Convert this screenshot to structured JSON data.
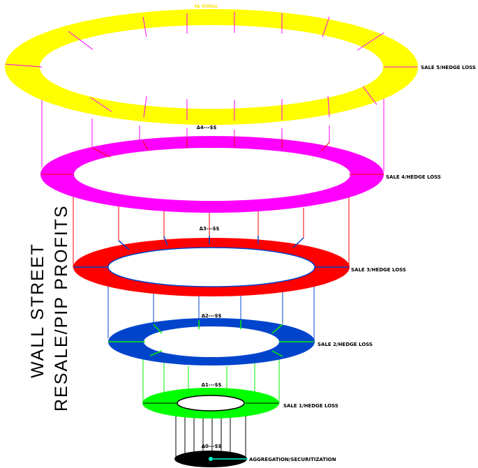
{
  "title_side_line1": "WALL STREET",
  "title_side_line2": "RESALE/PIP PROFITS",
  "top_label": "4$ Trillion",
  "colors": {
    "ring5": "#ffff00",
    "ring4": "#ff00ff",
    "ring3": "#ff0000",
    "ring2": "#0044cc",
    "ring1": "#00ff00",
    "ring0": "#000000",
    "top_label": "#ffe000"
  },
  "tiers": [
    {
      "delta": "Δ0---$$",
      "label": "AGGREGATION/SECURITIZATION"
    },
    {
      "delta": "Δ1---$$",
      "label": "SALE 1/HEDGE LOSS"
    },
    {
      "delta": "Δ2---$$",
      "label": "SALE 2/HEDGE LOSS"
    },
    {
      "delta": "Δ3---$$",
      "label": "SALE 3/HEDGE LOSS"
    },
    {
      "delta": "Δ4---$$",
      "label": "SALE 4/HEDGE LOSS"
    },
    {
      "label": "SALE 5/HEDGE LOSS"
    }
  ]
}
